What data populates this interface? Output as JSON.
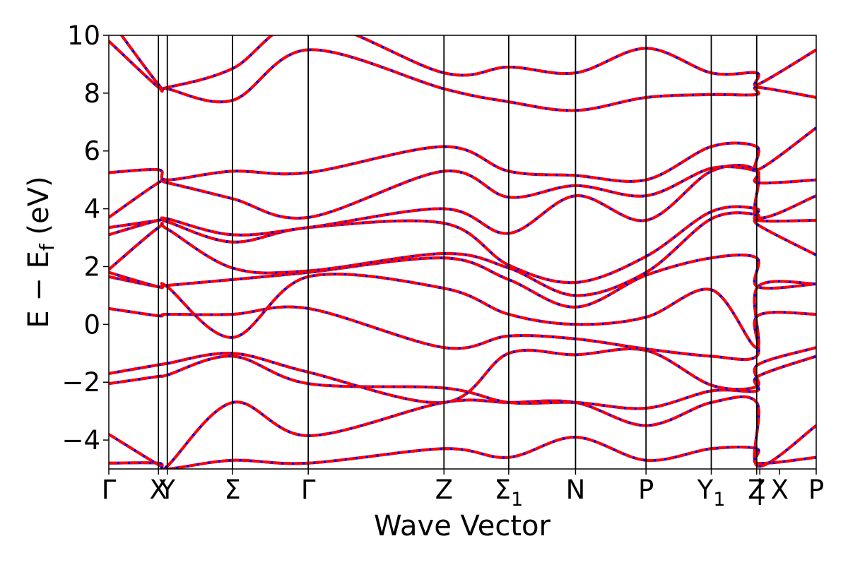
{
  "chart_data": {
    "type": "line",
    "title": "",
    "xlabel": "Wave Vector",
    "ylabel": "E − E",
    "ylabel_sub": "f",
    "ylabel_unit": " (eV)",
    "ylim": [
      -5,
      10
    ],
    "yticks": [
      -4,
      -2,
      0,
      2,
      4,
      6,
      8,
      10
    ],
    "ytick_labels": [
      "−4",
      "−2",
      "0",
      "2",
      "4",
      "6",
      "8",
      "10"
    ],
    "xlim": [
      0,
      13.55
    ],
    "grid": false,
    "legend": "none",
    "kpath": [
      {
        "x": 0.0,
        "label": "Γ",
        "sub": ""
      },
      {
        "x": 0.95,
        "label": "X",
        "sub": ""
      },
      {
        "x": 1.12,
        "label": "Y",
        "sub": ""
      },
      {
        "x": 2.37,
        "label": "Σ",
        "sub": ""
      },
      {
        "x": 3.82,
        "label": "Γ",
        "sub": ""
      },
      {
        "x": 6.42,
        "label": "Z",
        "sub": ""
      },
      {
        "x": 7.66,
        "label": "Σ",
        "sub": "1"
      },
      {
        "x": 8.94,
        "label": "N",
        "sub": ""
      },
      {
        "x": 10.29,
        "label": "P",
        "sub": ""
      },
      {
        "x": 11.54,
        "label": "Y",
        "sub": "1"
      },
      {
        "x": 12.41,
        "label": "Z",
        "sub": ""
      },
      {
        "x": 12.47,
        "label": "|",
        "sub": ""
      },
      {
        "x": 12.85,
        "label": "X",
        "sub": ""
      },
      {
        "x": 13.55,
        "label": "P",
        "sub": ""
      }
    ],
    "segment_breaks_x": [
      0.95,
      1.12,
      2.37,
      3.82,
      6.42,
      7.66,
      8.94,
      10.29,
      11.54,
      12.41
    ],
    "series_style": {
      "series_a_color": "#0000ff",
      "series_b_color": "#ff0000",
      "series_b_dashed": true
    },
    "k_nodes": [
      0.0,
      0.95,
      1.12,
      2.37,
      3.82,
      6.42,
      7.66,
      8.94,
      10.29,
      11.54,
      12.41,
      12.43,
      13.55
    ],
    "bands": [
      [
        -4.8,
        -4.8,
        -5.0,
        -4.7,
        -4.8,
        -4.3,
        -4.6,
        -3.9,
        -4.7,
        -4.3,
        -4.3,
        -4.8,
        -4.6
      ],
      [
        -3.8,
        -4.85,
        -4.9,
        -2.7,
        -3.85,
        -2.7,
        -2.7,
        -2.7,
        -3.5,
        -2.7,
        -2.7,
        -4.9,
        -3.5
      ],
      [
        -2.05,
        -1.8,
        -1.75,
        -1.1,
        -2.05,
        -2.2,
        -2.7,
        -2.7,
        -2.9,
        -2.3,
        -2.3,
        -1.8,
        -1.1
      ],
      [
        -1.7,
        -1.4,
        -1.35,
        -1.0,
        -1.65,
        -2.7,
        -1.0,
        -1.05,
        -0.9,
        -2.1,
        -2.15,
        -1.4,
        -0.8
      ],
      [
        0.55,
        0.3,
        0.35,
        0.35,
        0.55,
        -0.8,
        -0.4,
        -0.5,
        -0.85,
        -1.1,
        -1.1,
        0.3,
        0.35
      ],
      [
        1.65,
        1.3,
        1.3,
        -0.45,
        1.65,
        1.25,
        0.35,
        0.0,
        0.25,
        1.2,
        -0.8,
        1.3,
        1.4
      ],
      [
        1.8,
        1.3,
        1.35,
        1.55,
        1.8,
        2.3,
        1.55,
        0.6,
        1.7,
        2.3,
        2.3,
        1.3,
        1.4
      ],
      [
        1.9,
        3.35,
        3.3,
        1.95,
        1.85,
        2.45,
        1.95,
        1.0,
        1.8,
        3.65,
        3.8,
        3.45,
        2.4
      ],
      [
        3.1,
        3.6,
        3.55,
        2.85,
        3.35,
        3.5,
        2.05,
        1.45,
        2.35,
        3.9,
        4.0,
        3.6,
        3.6
      ],
      [
        3.35,
        3.6,
        3.65,
        3.1,
        3.35,
        4.0,
        3.15,
        4.45,
        3.6,
        5.3,
        5.3,
        3.7,
        4.45
      ],
      [
        3.7,
        4.9,
        4.9,
        4.35,
        3.7,
        5.3,
        4.4,
        4.8,
        4.45,
        5.4,
        5.3,
        4.9,
        5.0
      ],
      [
        5.25,
        5.35,
        5.0,
        5.3,
        5.25,
        6.15,
        5.3,
        5.15,
        5.0,
        6.15,
        6.15,
        5.35,
        6.8
      ],
      [
        9.8,
        8.2,
        8.15,
        7.75,
        9.5,
        8.15,
        7.7,
        7.4,
        7.85,
        7.95,
        7.95,
        8.2,
        7.85
      ],
      [
        10.6,
        8.3,
        8.2,
        8.85,
        10.5,
        8.7,
        8.9,
        8.7,
        9.55,
        8.7,
        8.7,
        8.3,
        9.5
      ]
    ]
  }
}
